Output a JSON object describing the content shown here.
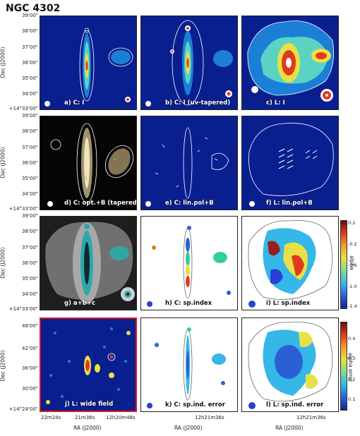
{
  "figure_title": "NGC 4302",
  "y_axis": {
    "label": "Dec (J2000)",
    "rows": [
      [
        "39'00\"",
        "38'00\"",
        "37'00\"",
        "36'00\"",
        "35'00\"",
        "34'00\"",
        "+14°33'00\""
      ],
      [
        "39'00\"",
        "38'00\"",
        "37'00\"",
        "36'00\"",
        "35'00\"",
        "34'00\"",
        "+14°33'00\""
      ],
      [
        "39'00\"",
        "38'00\"",
        "37'00\"",
        "36'00\"",
        "35'00\"",
        "34'00\"",
        "+14°33'00\""
      ],
      [
        "48'00\"",
        "42'00\"",
        "36'00\"",
        "30'00\"",
        "+14°24'00\""
      ]
    ]
  },
  "x_axis": {
    "label": "RA (J2000)",
    "col1_ticks": [
      "22m24s",
      "21m36s",
      "12h20m48s"
    ],
    "col2_ticks": [
      "12h21m36s"
    ],
    "col3_ticks": [
      "12h21m36s"
    ]
  },
  "panels": {
    "a": "a) C: I",
    "b": "b) C: I (uv-tapered)",
    "c": "c) L: I",
    "d": "d) C: opt.+B (tapered)",
    "e": "e) C: lin.pol+B",
    "f": "f) L: lin.pol+B",
    "g": "g) a+b+c",
    "h": "h) C: sp.index",
    "i": "i) L: sp.index",
    "j": "j) L: wide field",
    "k": "k) C: sp.ind. error",
    "l": "l) L: sp.ind. error"
  },
  "colorbar_alpha": {
    "label": "alpha",
    "ticks": [
      "0.2",
      "-0.2",
      "-0.6",
      "-1.0",
      "-1.4"
    ]
  },
  "colorbar_alpha_error": {
    "label": "alpha error",
    "ticks": [
      "0.4",
      "0.3",
      "0.2",
      "0.1"
    ]
  },
  "colors": {
    "panel_bg_blue": "#0a1f8f",
    "frame_highlight": "#e0141e"
  }
}
